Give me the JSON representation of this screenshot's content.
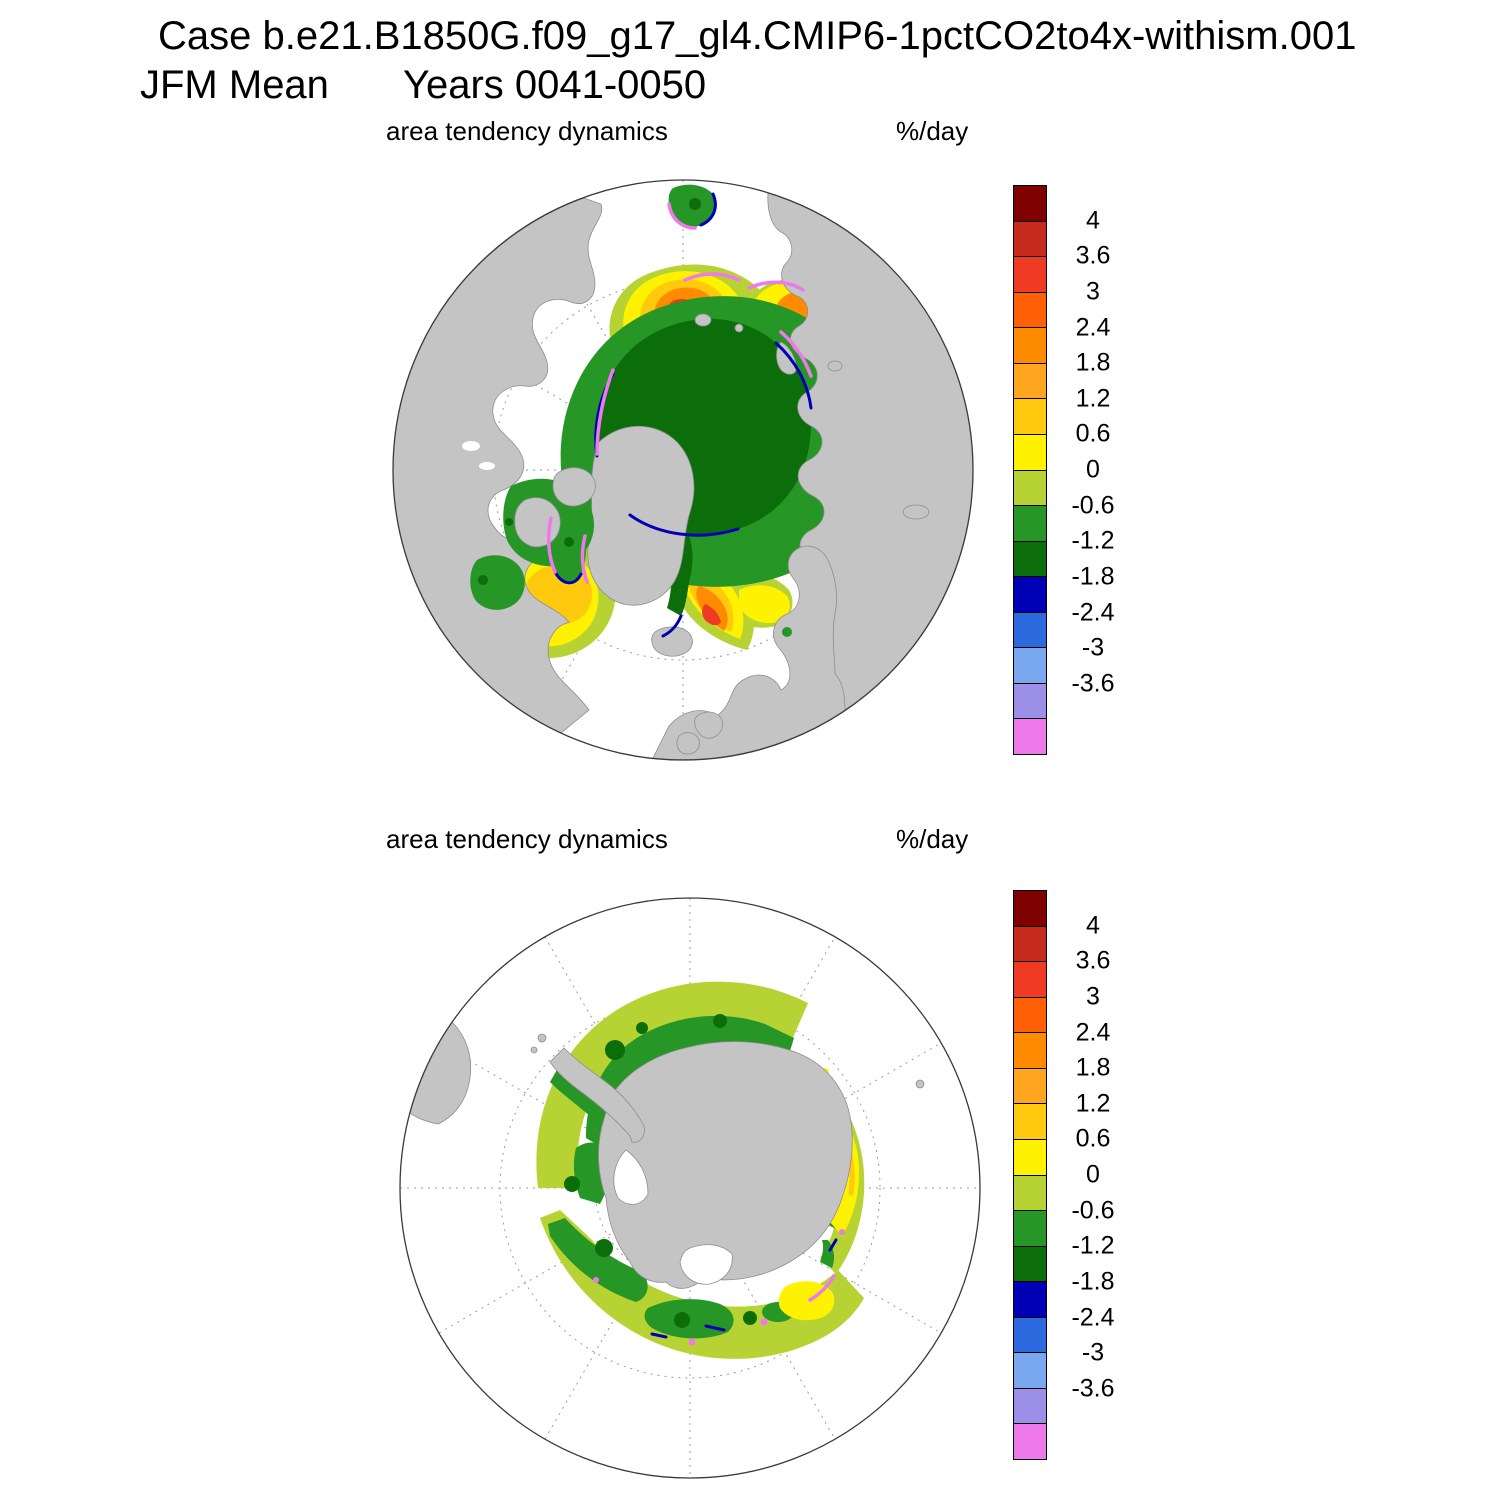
{
  "header": {
    "line1": "Case b.e21.B1850G.f09_g17_gl4.CMIP6-1pctCO2to4x-withism.001",
    "season": "JFM Mean",
    "years": "Years 0041-0050"
  },
  "panels": [
    {
      "label": "area tendency dynamics",
      "units": "%/day"
    },
    {
      "label": "area tendency dynamics",
      "units": "%/day"
    }
  ],
  "colorbar": {
    "labels": [
      "4",
      "3.6",
      "3",
      "2.4",
      "1.8",
      "1.2",
      "0.6",
      "0",
      "-0.6",
      "-1.2",
      "-1.8",
      "-2.4",
      "-3",
      "-3.6"
    ],
    "colors": [
      "#7f0000",
      "#c62b1c",
      "#ef3b23",
      "#ff5f05",
      "#ff8c00",
      "#ffa51e",
      "#ffc90d",
      "#fff200",
      "#b7d333",
      "#269626",
      "#0b6e0b",
      "#0000b4",
      "#2d6ae0",
      "#7aa8ef",
      "#9b8fe8",
      "#ee79ea"
    ]
  },
  "map": {
    "land_color": "#c4c4c4",
    "ocean_color": "#ffffff",
    "coast_color": "#8e8e8e"
  },
  "chart_data": [
    {
      "type": "heatmap",
      "title": "area tendency dynamics",
      "units": "%/day",
      "hemisphere": "northern",
      "contour_levels": [
        -3.6,
        -3,
        -2.4,
        -1.8,
        -1.2,
        -0.6,
        0,
        0.6,
        1.2,
        1.8,
        2.4,
        3,
        3.6,
        4
      ],
      "legend_position": "right"
    },
    {
      "type": "heatmap",
      "title": "area tendency dynamics",
      "units": "%/day",
      "hemisphere": "southern",
      "contour_levels": [
        -3.6,
        -3,
        -2.4,
        -1.8,
        -1.2,
        -0.6,
        0,
        0.6,
        1.2,
        1.8,
        2.4,
        3,
        3.6,
        4
      ],
      "legend_position": "right"
    }
  ]
}
